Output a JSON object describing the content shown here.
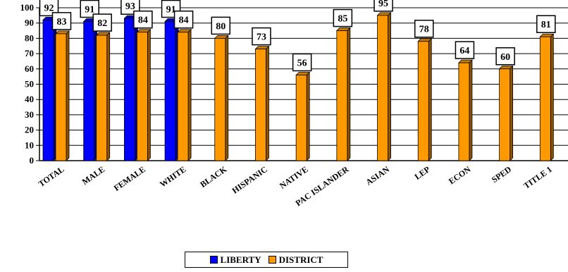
{
  "chart_data": {
    "type": "bar",
    "categories": [
      "TOTAL",
      "MALE",
      "FEMALE",
      "WHITE",
      "BLACK",
      "HISPANIC",
      "NATIVE",
      "PAC ISLANDER",
      "ASIAN",
      "LEP",
      "ECON",
      "SPED",
      "TITLE 1"
    ],
    "series": [
      {
        "name": "LIBERTY",
        "color": "#0000ff",
        "values": [
          92,
          91,
          93,
          91,
          null,
          null,
          null,
          null,
          null,
          null,
          null,
          null,
          null
        ]
      },
      {
        "name": "DISTRICT",
        "color": "#ff9900",
        "values": [
          83,
          82,
          84,
          84,
          80,
          73,
          56,
          85,
          95,
          78,
          64,
          60,
          81
        ]
      }
    ],
    "yticks": [
      "0",
      "10",
      "20",
      "30",
      "40",
      "50",
      "60",
      "70",
      "80",
      "90",
      "100"
    ],
    "ylim": [
      0,
      100
    ],
    "grid": true,
    "legend_position": "bottom"
  },
  "legend": {
    "liberty_label": "LIBERTY",
    "district_label": "DISTRICT"
  }
}
